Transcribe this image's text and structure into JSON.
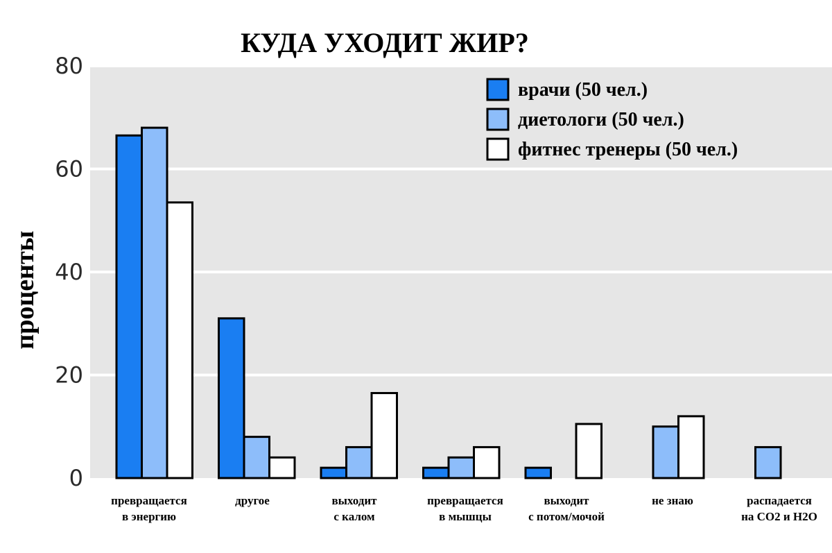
{
  "chart_data": {
    "type": "bar",
    "title": "КУДА УХОДИТ ЖИР?",
    "ylabel": "проценты",
    "xlabel": "",
    "ylim": [
      0,
      80
    ],
    "yticks": [
      0,
      20,
      40,
      60,
      80
    ],
    "grid": true,
    "legend_position": "top-right",
    "categories": [
      [
        "превращается",
        "в энергию"
      ],
      [
        "другое"
      ],
      [
        "выходит",
        "с калом"
      ],
      [
        "превращается",
        "в мышцы"
      ],
      [
        "выходит",
        "с потом/мочой"
      ],
      [
        "не знаю"
      ],
      [
        "распадается",
        "на CO2 и H2O"
      ]
    ],
    "series": [
      {
        "name": "врачи (50 чел.)",
        "color": "#1a7ef2",
        "values": [
          66.5,
          31,
          2,
          2,
          2,
          0,
          0
        ]
      },
      {
        "name": "диетологи (50 чел.)",
        "color": "#8dbdfa",
        "values": [
          68,
          8,
          6,
          4,
          0,
          10,
          6
        ]
      },
      {
        "name": "фитнес тренеры (50 чел.)",
        "color": "#ffffff",
        "values": [
          53.5,
          4,
          16.5,
          6,
          10.5,
          12,
          0
        ]
      }
    ]
  }
}
